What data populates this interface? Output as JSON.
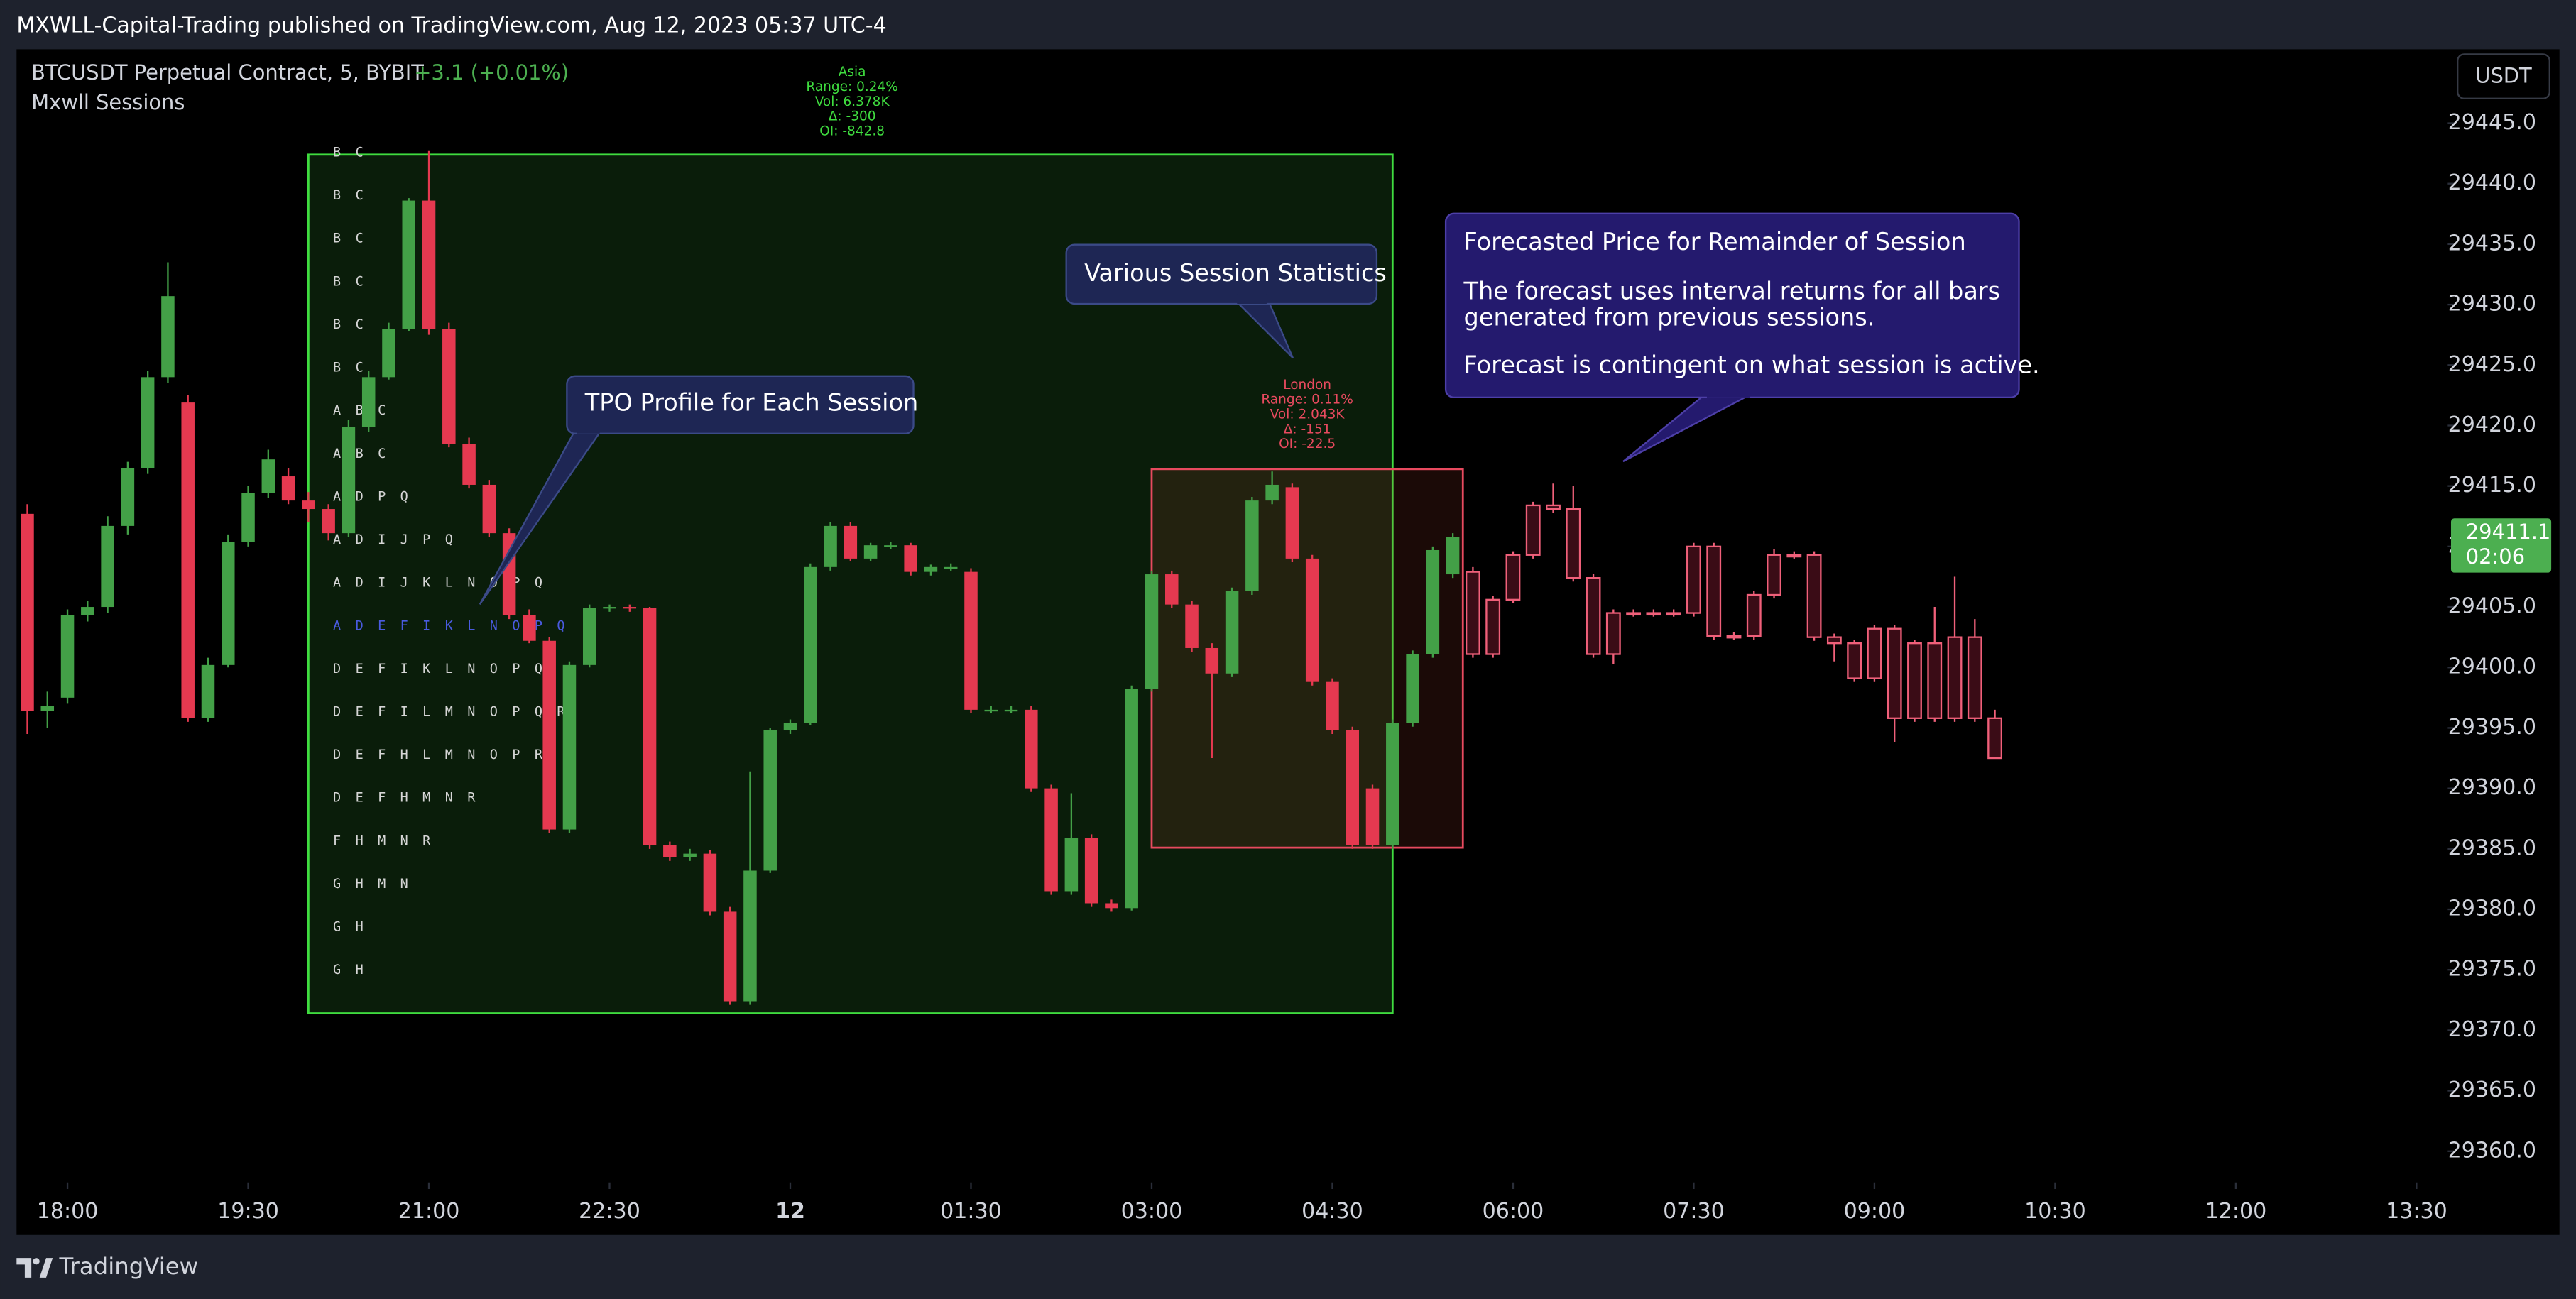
{
  "header": {
    "text": "MXWLL-Capital-Trading published on TradingView.com, Aug 12, 2023 05:37 UTC-4"
  },
  "legend": {
    "symbol": "BTCUSDT Perpetual Contract, 5, BYBIT",
    "change": "+3.1 (+0.01%)",
    "indicator": "Mxwll Sessions"
  },
  "currency": "USDT",
  "footer": {
    "brand": "TradingView"
  },
  "callouts": {
    "tpo": "TPO Profile for Each Session",
    "stats": "Various Session Statistics",
    "forecast": {
      "title": "Forecasted Price for Remainder of Session",
      "lines": [
        "The forecast uses interval returns for all bars",
        "generated from previous sessions.",
        "Forecast is contingent on what session is active."
      ]
    }
  },
  "chart_data": {
    "type": "candlestick",
    "up_color": "#43a047",
    "down_color": "#e53950",
    "ylim": [
      29357.2,
      29447.9
    ],
    "yticks": [
      {
        "value": 29445,
        "label": "29445.0"
      },
      {
        "value": 29440,
        "label": "29440.0"
      },
      {
        "value": 29435,
        "label": "29435.0"
      },
      {
        "value": 29430,
        "label": "29430.0"
      },
      {
        "value": 29425,
        "label": "29425.0"
      },
      {
        "value": 29420,
        "label": "29420.0"
      },
      {
        "value": 29415,
        "label": "29415.0"
      },
      {
        "value": 29410,
        "label": "29410.0"
      },
      {
        "value": 29405,
        "label": "29405.0"
      },
      {
        "value": 29400,
        "label": "29400.0"
      },
      {
        "value": 29395,
        "label": "29395.0"
      },
      {
        "value": 29390,
        "label": "29390.0"
      },
      {
        "value": 29385,
        "label": "29385.0"
      },
      {
        "value": 29380,
        "label": "29380.0"
      },
      {
        "value": 29375,
        "label": "29375.0"
      },
      {
        "value": 29370,
        "label": "29370.0"
      },
      {
        "value": 29365,
        "label": "29365.0"
      },
      {
        "value": 29360,
        "label": "29360.0"
      }
    ],
    "xticks": [
      "18:00",
      "19:30",
      "21:00",
      "22:30",
      {
        "value": "00:00",
        "label": "12"
      },
      "01:30",
      "03:00",
      "04:30",
      "06:00",
      "07:30",
      "09:00",
      "10:30",
      "12:00",
      "13:30"
    ],
    "last_price": 29411.1,
    "countdown": "02:06",
    "last_color": "#4caf50",
    "candles": {
      "x": [
        "17:40",
        "17:50",
        "18:00",
        "18:10",
        "18:20",
        "18:30",
        "18:40",
        "18:50",
        "19:00",
        "19:10",
        "19:20",
        "19:30",
        "19:40",
        "19:50",
        "20:00",
        "20:10",
        "20:20",
        "20:30",
        "20:40",
        "20:50",
        "21:00",
        "21:10",
        "21:20",
        "21:30",
        "21:40",
        "21:50",
        "22:00",
        "22:10",
        "22:20",
        "22:30",
        "22:40",
        "22:50",
        "23:00",
        "23:10",
        "23:20",
        "23:30",
        "23:40",
        "23:50",
        "00:00",
        "00:10",
        "00:20",
        "00:30",
        "00:40",
        "00:50",
        "01:00",
        "01:10",
        "01:20",
        "01:30",
        "01:40",
        "01:50",
        "02:00",
        "02:10",
        "02:20",
        "02:30",
        "02:40",
        "02:50",
        "03:00",
        "03:10",
        "03:20",
        "03:30",
        "03:40",
        "03:50",
        "04:00",
        "04:10",
        "04:20",
        "04:30",
        "04:40",
        "04:50",
        "05:00",
        "05:10",
        "05:20",
        "05:30"
      ],
      "open": [
        29412.7,
        29396.4,
        29397.5,
        29404.3,
        29405.0,
        29411.7,
        29416.5,
        29424.0,
        29421.9,
        29395.8,
        29400.2,
        29410.4,
        29414.4,
        29415.8,
        29413.8,
        29413.1,
        29411.1,
        29419.9,
        29424.0,
        29428.0,
        29438.6,
        29428.0,
        29418.5,
        29415.1,
        29411.1,
        29404.3,
        29402.2,
        29386.6,
        29400.2,
        29404.9,
        29405.0,
        29404.9,
        29385.3,
        29384.3,
        29384.6,
        29379.8,
        29372.4,
        29383.2,
        29394.8,
        29395.4,
        29408.3,
        29411.7,
        29409.0,
        29410.1,
        29410.1,
        29407.9,
        29408.3,
        29407.9,
        29396.5,
        29396.5,
        29396.5,
        29390.0,
        29381.5,
        29385.9,
        29380.5,
        29380.1,
        29398.2,
        29407.7,
        29405.2,
        29401.6,
        29399.5,
        29406.3,
        29413.8,
        29414.9,
        29409.0,
        29398.8,
        29394.8,
        29390.0,
        29385.3,
        29395.4,
        29401.1,
        29407.7
      ],
      "high": [
        29413.5,
        29398.0,
        29404.8,
        29405.5,
        29412.5,
        29417.0,
        29424.5,
        29433.5,
        29422.5,
        29400.8,
        29411.0,
        29415.0,
        29418.0,
        29416.5,
        29414.5,
        29413.5,
        29420.5,
        29424.5,
        29428.5,
        29438.8,
        29442.7,
        29428.5,
        29419.0,
        29415.5,
        29411.5,
        29404.8,
        29402.5,
        29400.5,
        29405.2,
        29405.2,
        29405.2,
        29405.0,
        29385.6,
        29385.0,
        29384.9,
        29380.2,
        29391.4,
        29395.0,
        29395.7,
        29408.6,
        29412.0,
        29412.0,
        29410.3,
        29410.4,
        29410.3,
        29408.5,
        29408.6,
        29408.2,
        29396.8,
        29396.8,
        29396.8,
        29390.3,
        29389.6,
        29386.2,
        29380.8,
        29398.5,
        29408.0,
        29408.0,
        29405.5,
        29402.0,
        29406.6,
        29414.1,
        29416.2,
        29415.2,
        29409.3,
        29399.1,
        29395.1,
        29390.3,
        29395.7,
        29401.4,
        29410.0,
        29411.1
      ],
      "low": [
        29394.5,
        29395.0,
        29397.0,
        29403.8,
        29404.5,
        29411.0,
        29416.0,
        29423.5,
        29395.5,
        29395.5,
        29400.0,
        29410.0,
        29414.0,
        29413.5,
        29412.0,
        29410.5,
        29410.8,
        29419.5,
        29423.8,
        29427.8,
        29427.5,
        29418.2,
        29414.8,
        29410.8,
        29404.0,
        29402.0,
        29386.3,
        29386.3,
        29400.0,
        29404.6,
        29404.6,
        29385.0,
        29384.0,
        29384.0,
        29379.5,
        29372.1,
        29372.1,
        29383.0,
        29394.5,
        29395.2,
        29408.0,
        29408.8,
        29408.8,
        29409.8,
        29407.6,
        29407.6,
        29408.0,
        29396.2,
        29396.2,
        29396.2,
        29389.7,
        29381.2,
        29381.2,
        29380.2,
        29379.8,
        29379.9,
        29398.0,
        29404.9,
        29401.3,
        29392.5,
        29399.2,
        29406.0,
        29413.5,
        29408.7,
        29398.5,
        29394.5,
        29385.0,
        29385.0,
        29385.0,
        29395.1,
        29400.8,
        29407.4
      ],
      "close": [
        29396.4,
        29396.8,
        29404.3,
        29405.0,
        29411.7,
        29416.5,
        29424.0,
        29430.7,
        29395.8,
        29400.2,
        29410.4,
        29414.4,
        29417.2,
        29413.8,
        29413.1,
        29411.1,
        29419.9,
        29424.0,
        29428.0,
        29438.6,
        29428.0,
        29418.5,
        29415.1,
        29411.1,
        29404.3,
        29402.2,
        29386.6,
        29400.2,
        29404.9,
        29405.0,
        29404.9,
        29385.3,
        29384.3,
        29384.6,
        29379.8,
        29372.4,
        29383.2,
        29394.8,
        29395.4,
        29408.3,
        29411.7,
        29409.0,
        29410.1,
        29410.1,
        29407.9,
        29408.3,
        29408.3,
        29396.5,
        29396.5,
        29396.5,
        29390.0,
        29381.5,
        29385.9,
        29380.5,
        29380.1,
        29398.2,
        29407.7,
        29405.2,
        29401.6,
        29399.5,
        29406.3,
        29413.8,
        29415.1,
        29409.0,
        29398.8,
        29394.8,
        29385.3,
        29385.3,
        29395.4,
        29401.1,
        29409.7,
        29410.8
      ]
    },
    "forecast": {
      "color": "#f0607a",
      "fill": "#3a0c16",
      "x": [
        "05:40",
        "05:50",
        "06:00",
        "06:10",
        "06:20",
        "06:30",
        "06:40",
        "06:50",
        "07:00",
        "07:10",
        "07:20",
        "07:30",
        "07:40",
        "07:50",
        "08:00",
        "08:10",
        "08:20",
        "08:30",
        "08:40",
        "08:50",
        "09:00",
        "09:10",
        "09:20",
        "09:30",
        "09:40",
        "09:50",
        "10:00"
      ],
      "open": [
        29407.9,
        29401.1,
        29405.6,
        29409.3,
        29413.4,
        29413.1,
        29407.4,
        29401.1,
        29404.5,
        29404.5,
        29404.5,
        29404.5,
        29410.0,
        29402.6,
        29402.6,
        29406.0,
        29409.3,
        29409.3,
        29402.5,
        29402.0,
        29399.1,
        29403.2,
        29395.8,
        29402.0,
        29395.8,
        29402.5,
        29395.8
      ],
      "high": [
        29408.3,
        29405.9,
        29409.6,
        29413.7,
        29415.2,
        29415.0,
        29407.7,
        29404.8,
        29404.8,
        29404.8,
        29404.8,
        29410.3,
        29410.3,
        29402.9,
        29406.3,
        29409.8,
        29409.6,
        29409.6,
        29402.8,
        29402.3,
        29403.5,
        29403.5,
        29402.3,
        29405.0,
        29407.5,
        29404.0,
        29396.5
      ],
      "low": [
        29400.8,
        29400.8,
        29405.3,
        29409.0,
        29412.8,
        29407.1,
        29400.8,
        29400.3,
        29404.2,
        29404.2,
        29404.2,
        29404.2,
        29402.3,
        29402.3,
        29402.3,
        29405.7,
        29409.0,
        29402.2,
        29400.5,
        29398.8,
        29398.8,
        29393.8,
        29395.5,
        29395.5,
        29395.5,
        29395.5,
        29392.5
      ],
      "close": [
        29401.1,
        29405.6,
        29409.3,
        29413.4,
        29413.1,
        29407.4,
        29401.1,
        29404.5,
        29404.5,
        29404.5,
        29404.5,
        29410.0,
        29402.6,
        29402.6,
        29406.0,
        29409.3,
        29409.3,
        29402.5,
        29402.0,
        29399.1,
        29403.2,
        29395.8,
        29402.0,
        29395.8,
        29402.5,
        29395.8,
        29392.5
      ]
    },
    "sessions": [
      {
        "start": "20:00",
        "end": "05:00",
        "top": 29442.4,
        "bottom": 29371.4,
        "color": "#3fdc3f",
        "fill": "#0a1d0a",
        "stats": [
          "Asia",
          "Range: 0.24%",
          "Vol: 6.378K",
          "Δ: -300",
          "OI: -842.8"
        ]
      },
      {
        "start": "03:00",
        "end": "05:35",
        "top": 29416.4,
        "bottom": 29385.1,
        "color": "#e84a5f",
        "fill": "rgba(190,70,50,0.14)",
        "stats": [
          "London",
          "Range: 0.11%",
          "Vol: 2.043K",
          "Δ: -151",
          "OI: -22.5"
        ]
      }
    ],
    "tpo": {
      "poc_color": "#4a5be0",
      "rows": [
        {
          "text": "B C"
        },
        {
          "text": "B C"
        },
        {
          "text": "B C"
        },
        {
          "text": "B C"
        },
        {
          "text": "B C"
        },
        {
          "text": "B C"
        },
        {
          "text": "A B C"
        },
        {
          "text": "A B C"
        },
        {
          "text": "A D P Q"
        },
        {
          "text": "A D I J P Q"
        },
        {
          "text": "A D I J K L N O P Q"
        },
        {
          "text": "A D E F I K L N O P Q",
          "poc": true
        },
        {
          "text": "D E F I K L N O P Q"
        },
        {
          "text": "D E F I L M N O P Q R"
        },
        {
          "text": "D E F H L M N O P R"
        },
        {
          "text": "D E F H M N R"
        },
        {
          "text": "F H M N R"
        },
        {
          "text": "G H M N"
        },
        {
          "text": "G H"
        },
        {
          "text": "G H"
        }
      ]
    }
  }
}
